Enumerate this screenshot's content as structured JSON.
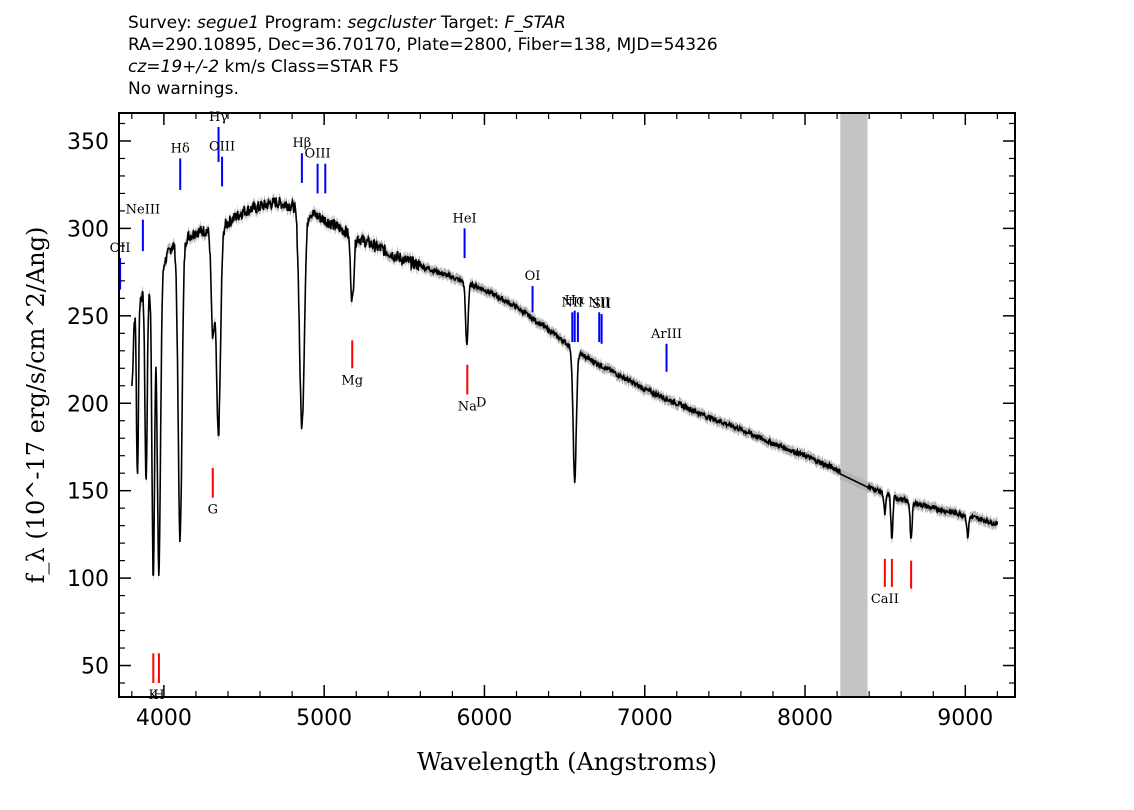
{
  "header": {
    "survey_label": "Survey:",
    "survey": "segue1",
    "program_label": "Program:",
    "program": "segcluster",
    "target_label": "Target:",
    "target": "F_STAR",
    "line2": "RA=290.10895, Dec=36.70170, Plate=2800, Fiber=138, MJD=54326",
    "cz": "cz=19+/-2",
    "cz_units": "km/s Class=STAR F5",
    "line4": "No warnings."
  },
  "chart_data": {
    "type": "line",
    "xlabel": "Wavelength (Angstroms)",
    "ylabel": "f_λ (10^-17 erg/s/cm^2/Ang)",
    "xlim": [
      3720,
      9310
    ],
    "ylim": [
      32,
      366
    ],
    "xticks": [
      4000,
      5000,
      6000,
      7000,
      8000,
      9000
    ],
    "yticks": [
      50,
      100,
      150,
      200,
      250,
      300,
      350
    ],
    "masked_region": [
      8220,
      8390
    ],
    "colors": {
      "spectrum": "#000000",
      "error_band": "#b4b4b4",
      "emission_lines": "#0000ff",
      "absorption_lines": "#ff0000",
      "mask": "#c4c4c4"
    },
    "continuum": [
      [
        3800,
        250
      ],
      [
        3850,
        260
      ],
      [
        3950,
        270
      ],
      [
        4050,
        290
      ],
      [
        4200,
        298
      ],
      [
        4350,
        300
      ],
      [
        4500,
        310
      ],
      [
        4700,
        315
      ],
      [
        4850,
        312
      ],
      [
        5000,
        305
      ],
      [
        5200,
        295
      ],
      [
        5500,
        282
      ],
      [
        5800,
        272
      ],
      [
        6000,
        265
      ],
      [
        6200,
        255
      ],
      [
        6400,
        242
      ],
      [
        6600,
        228
      ],
      [
        6800,
        218
      ],
      [
        7000,
        208
      ],
      [
        7200,
        200
      ],
      [
        7400,
        192
      ],
      [
        7600,
        185
      ],
      [
        7800,
        177
      ],
      [
        8000,
        170
      ],
      [
        8200,
        162
      ],
      [
        8400,
        152
      ],
      [
        8600,
        145
      ],
      [
        8800,
        140
      ],
      [
        9000,
        136
      ],
      [
        9200,
        131
      ]
    ],
    "absorption_features": [
      {
        "center": 3760,
        "depth": 30,
        "width": 8
      },
      {
        "center": 3800,
        "depth": 40,
        "width": 8
      },
      {
        "center": 3835,
        "depth": 100,
        "width": 6
      },
      {
        "center": 3889,
        "depth": 110,
        "width": 7
      },
      {
        "center": 3934,
        "depth": 170,
        "width": 8
      },
      {
        "center": 3969,
        "depth": 170,
        "width": 10
      },
      {
        "center": 4101,
        "depth": 170,
        "width": 12
      },
      {
        "center": 4305,
        "depth": 60,
        "width": 10
      },
      {
        "center": 4340,
        "depth": 118,
        "width": 13
      },
      {
        "center": 4861,
        "depth": 125,
        "width": 15
      },
      {
        "center": 5175,
        "depth": 38,
        "width": 10
      },
      {
        "center": 5890,
        "depth": 35,
        "width": 8
      },
      {
        "center": 6563,
        "depth": 75,
        "width": 10
      },
      {
        "center": 8498,
        "depth": 12,
        "width": 6
      },
      {
        "center": 8542,
        "depth": 25,
        "width": 6
      },
      {
        "center": 8662,
        "depth": 22,
        "width": 6
      },
      {
        "center": 9015,
        "depth": 12,
        "width": 6
      }
    ],
    "emission_lines": [
      {
        "label": "OII",
        "wavelength": 3727,
        "y_bottom": 265,
        "y_top": 283
      },
      {
        "label": "NeIII",
        "wavelength": 3869,
        "y_bottom": 287,
        "y_top": 305
      },
      {
        "label": "Hδ",
        "wavelength": 4102,
        "y_bottom": 322,
        "y_top": 340
      },
      {
        "label": "Hγ",
        "wavelength": 4341,
        "y_bottom": 338,
        "y_top": 358
      },
      {
        "label": "OIII",
        "wavelength": 4363,
        "y_bottom": 324,
        "y_top": 341
      },
      {
        "label": "Hβ",
        "wavelength": 4861,
        "y_bottom": 326,
        "y_top": 343
      },
      {
        "label": "OIII",
        "wavelength": 4959,
        "y_bottom": 320,
        "y_top": 337
      },
      {
        "label": "",
        "wavelength": 5007,
        "y_bottom": 320,
        "y_top": 337
      },
      {
        "label": "HeI",
        "wavelength": 5876,
        "y_bottom": 283,
        "y_top": 300
      },
      {
        "label": "OI",
        "wavelength": 6300,
        "y_bottom": 252,
        "y_top": 267
      },
      {
        "label": "NII",
        "wavelength": 6548,
        "y_bottom": 235,
        "y_top": 252
      },
      {
        "label": "Hα",
        "wavelength": 6563,
        "y_bottom": 235,
        "y_top": 253
      },
      {
        "label": "",
        "wavelength": 6583,
        "y_bottom": 235,
        "y_top": 252
      },
      {
        "label": "NII",
        "wavelength": 6716,
        "y_bottom": 235,
        "y_top": 252
      },
      {
        "label": "SII",
        "wavelength": 6731,
        "y_bottom": 234,
        "y_top": 251
      },
      {
        "label": "ArIII",
        "wavelength": 7136,
        "y_bottom": 218,
        "y_top": 234
      }
    ],
    "absorption_lines": [
      {
        "label": "K",
        "wavelength": 3934,
        "y_bottom": 40,
        "y_top": 57
      },
      {
        "label": "H",
        "wavelength": 3969,
        "y_bottom": 40,
        "y_top": 57
      },
      {
        "label": "G",
        "wavelength": 4305,
        "y_bottom": 146,
        "y_top": 163
      },
      {
        "label": "Mg",
        "wavelength": 5175,
        "y_bottom": 220,
        "y_top": 236
      },
      {
        "label": "Na",
        "wavelength": 5893,
        "y_bottom": 205,
        "y_top": 222
      },
      {
        "label": "CaII",
        "wavelength": 8498,
        "y_bottom": 95,
        "y_top": 111
      },
      {
        "label": "",
        "wavelength": 8542,
        "y_bottom": 95,
        "y_top": 111
      },
      {
        "label": "",
        "wavelength": 8662,
        "y_bottom": 94,
        "y_top": 110
      }
    ],
    "extra_labels": [
      {
        "text": "D",
        "wavelength": 5980,
        "y": 198
      }
    ]
  }
}
